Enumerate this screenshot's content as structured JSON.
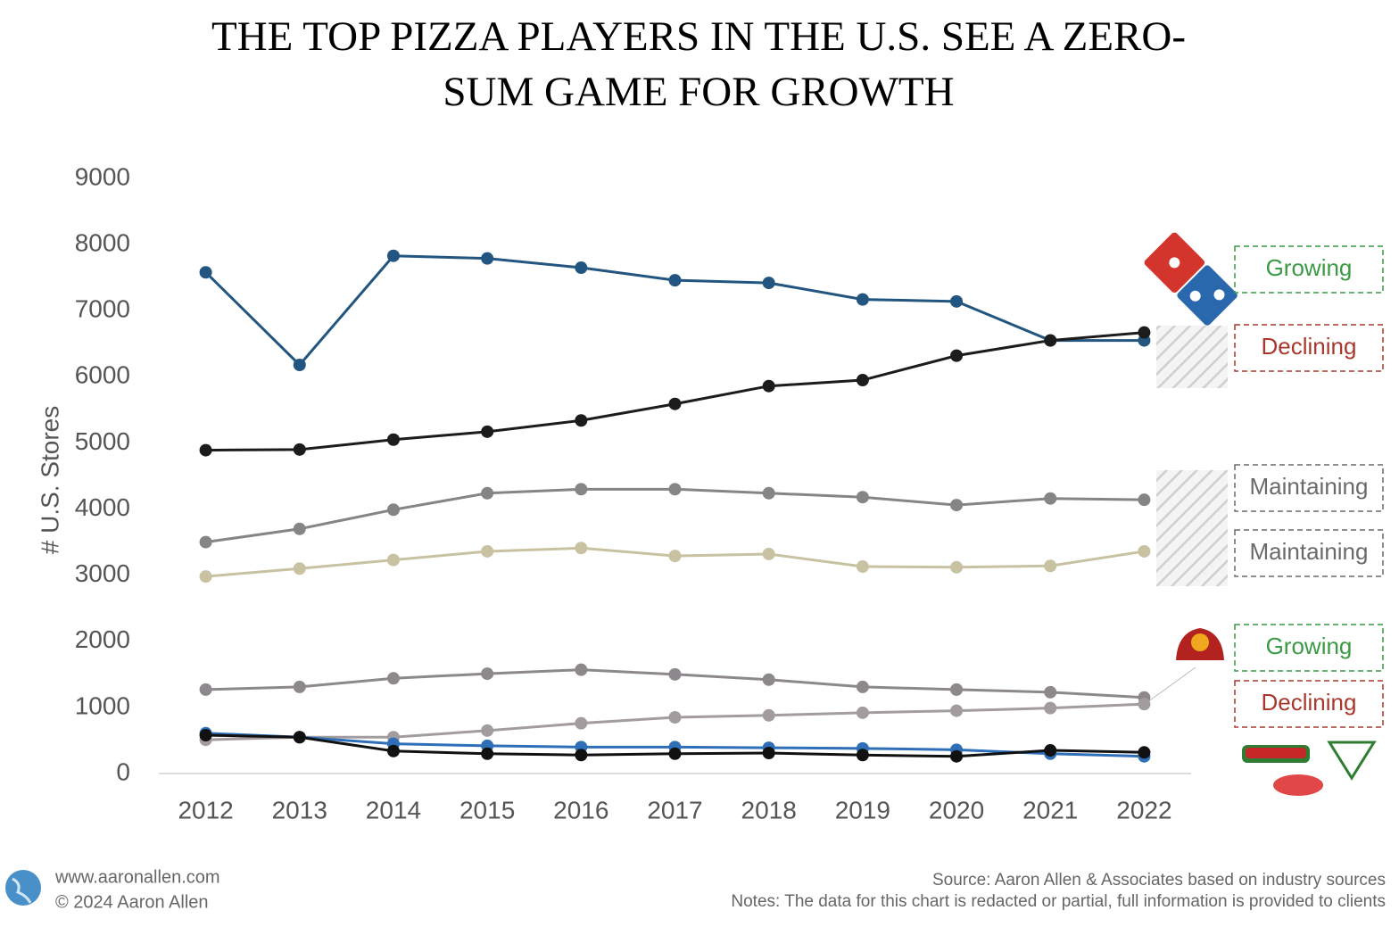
{
  "chart_data": {
    "type": "line",
    "title": "THE TOP PIZZA PLAYERS IN THE U.S. SEE A ZERO-SUM GAME FOR GROWTH",
    "y_label": "# U.S. Stores",
    "categories": [
      "2012",
      "2013",
      "2014",
      "2015",
      "2016",
      "2017",
      "2018",
      "2019",
      "2020",
      "2021",
      "2022"
    ],
    "ylim": [
      0,
      9000
    ],
    "yticks": [
      0,
      1000,
      2000,
      3000,
      4000,
      5000,
      6000,
      7000,
      8000,
      9000
    ],
    "grid": false,
    "series": [
      {
        "color": "#22557f",
        "values": [
          7580,
          6180,
          7830,
          7790,
          7650,
          7460,
          7420,
          7170,
          7140,
          6550,
          6550
        ]
      },
      {
        "color": "#1c1c1c",
        "values": [
          4890,
          4900,
          5050,
          5170,
          5340,
          5590,
          5860,
          5950,
          6320,
          6550,
          6670
        ]
      },
      {
        "color": "#858585",
        "values": [
          3500,
          3700,
          3990,
          4240,
          4300,
          4300,
          4240,
          4180,
          4060,
          4160,
          4140
        ]
      },
      {
        "color": "#c8c2a2",
        "values": [
          2980,
          3100,
          3230,
          3360,
          3410,
          3290,
          3320,
          3130,
          3120,
          3140,
          3360
        ]
      },
      {
        "color": "#8c888b",
        "values": [
          1270,
          1310,
          1440,
          1510,
          1570,
          1500,
          1420,
          1310,
          1270,
          1230,
          1150
        ]
      },
      {
        "color": "#a39c9f",
        "values": [
          510,
          550,
          550,
          650,
          760,
          850,
          880,
          920,
          950,
          990,
          1050
        ]
      },
      {
        "color": "#2f6fb8",
        "values": [
          610,
          550,
          450,
          420,
          400,
          400,
          390,
          380,
          360,
          300,
          260
        ]
      },
      {
        "color": "#111111",
        "values": [
          580,
          550,
          340,
          300,
          280,
          300,
          310,
          280,
          260,
          350,
          320
        ]
      }
    ],
    "annotations": [
      {
        "text": "Growing",
        "color": "#3a9a45"
      },
      {
        "text": "Declining",
        "color": "#a8382d"
      },
      {
        "text": "Maintaining",
        "color": "#6a6a6a"
      },
      {
        "text": "Maintaining",
        "color": "#6a6a6a"
      },
      {
        "text": "Growing",
        "color": "#3a9a45"
      },
      {
        "text": "Declining",
        "color": "#a8382d"
      }
    ]
  },
  "footer": {
    "website": "www.aaronallen.com",
    "copyright": "© 2024 Aaron Allen",
    "source": "Source: Aaron Allen & Associates based on industry sources",
    "notes": "Notes: The data for this chart is redacted or partial, full information is provided to clients"
  }
}
